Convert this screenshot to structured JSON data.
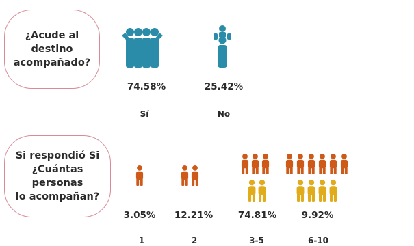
{
  "colors": {
    "teal": "#2a8ca8",
    "orange": "#cd5a18",
    "yellow": "#e0ac1c",
    "pill_border": "#d98a96"
  },
  "chart_data": [
    {
      "type": "pictograph",
      "question": [
        "¿Acude al destino",
        "acompañado?"
      ],
      "categories": [
        "Sí",
        "No"
      ],
      "values": [
        74.58,
        25.42
      ],
      "value_labels": [
        "74.58%",
        "25.42%"
      ],
      "icons": [
        "group-of-people-icon",
        "parent-with-child-icon"
      ]
    },
    {
      "type": "pictograph",
      "question": [
        "Si respondió Si",
        "¿Cuántas personas",
        "lo acompañan?"
      ],
      "categories": [
        "1",
        "2",
        "3-5",
        "6-10"
      ],
      "values": [
        3.05,
        12.21,
        74.81,
        9.92
      ],
      "value_labels": [
        "3.05%",
        "12.21%",
        "74.81%",
        "9.92%"
      ],
      "icon_counts": [
        {
          "orange": 1,
          "yellow": 0
        },
        {
          "orange": 2,
          "yellow": 0
        },
        {
          "orange": 3,
          "yellow": 2
        },
        {
          "orange": 6,
          "yellow": 4
        }
      ]
    }
  ]
}
